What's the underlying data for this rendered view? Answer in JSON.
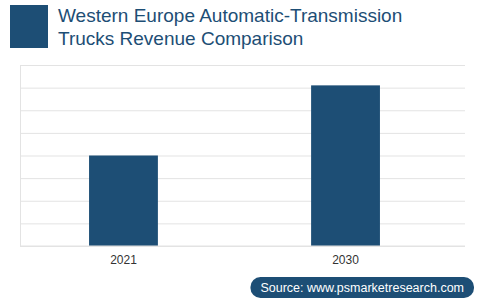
{
  "chart_data": {
    "type": "bar",
    "title": "Western Europe Automatic-Transmission Trucks Revenue Comparison",
    "categories": [
      "2021",
      "2030"
    ],
    "values": [
      4.0,
      7.1
    ],
    "color": "#1d4e75",
    "ylim": [
      0,
      8
    ],
    "yticks": [
      0,
      1,
      2,
      3,
      4,
      5,
      6,
      7,
      8
    ],
    "grid": true,
    "tick_labels": "x",
    "source": "Source: www.psmarketresearch.com"
  }
}
